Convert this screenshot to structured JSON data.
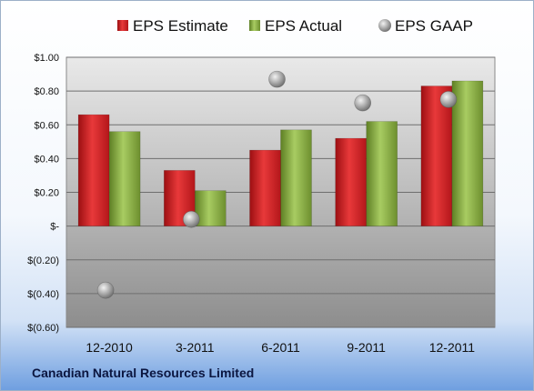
{
  "company_name": "Canadian Natural Resources Limited",
  "chart_data": {
    "type": "bar",
    "categories": [
      "12-2010",
      "3-2011",
      "6-2011",
      "9-2011",
      "12-2011"
    ],
    "series": [
      {
        "name": "EPS Estimate",
        "kind": "bar",
        "color": "#d62a2a",
        "values": [
          0.66,
          0.33,
          0.45,
          0.52,
          0.83
        ]
      },
      {
        "name": "EPS Actual",
        "kind": "bar",
        "color": "#8fb24a",
        "values": [
          0.56,
          0.21,
          0.57,
          0.62,
          0.86
        ]
      },
      {
        "name": "EPS GAAP",
        "kind": "marker",
        "color": "#a8a8a8",
        "values": [
          -0.38,
          0.04,
          0.87,
          0.73,
          0.75
        ]
      }
    ],
    "y_ticks": [
      {
        "value": 1.0,
        "label": "$1.00"
      },
      {
        "value": 0.8,
        "label": "$0.80"
      },
      {
        "value": 0.6,
        "label": "$0.60"
      },
      {
        "value": 0.4,
        "label": "$0.40"
      },
      {
        "value": 0.2,
        "label": "$0.20"
      },
      {
        "value": 0.0,
        "label": "$-"
      },
      {
        "value": -0.2,
        "label": "$(0.20)"
      },
      {
        "value": -0.4,
        "label": "$(0.40)"
      },
      {
        "value": -0.6,
        "label": "$(0.60)"
      }
    ],
    "ylim": [
      -0.6,
      1.0
    ],
    "grid": true,
    "legend_position": "top",
    "title": "",
    "xlabel": "",
    "ylabel": ""
  }
}
